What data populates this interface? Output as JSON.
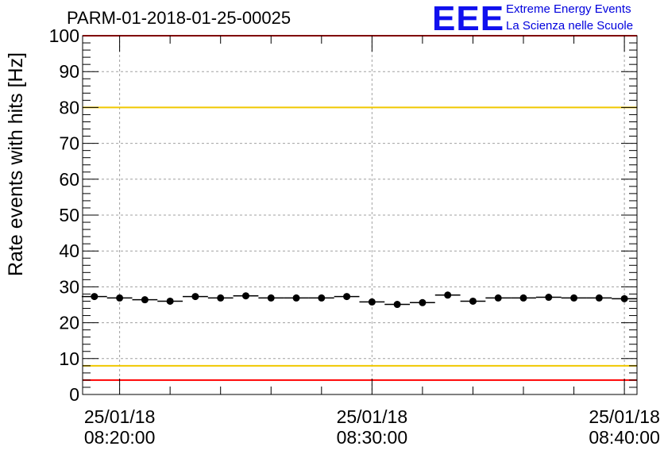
{
  "title": "PARM-01-2018-01-25-00025",
  "logo": {
    "text": "EEE",
    "line1": "Extreme Energy Events",
    "line2": "La Scienza nelle Scuole",
    "color": "#1010ee"
  },
  "chart_data": {
    "type": "scatter",
    "title": "PARM-01-2018-01-25-00025",
    "ylabel": "Rate events with hits [Hz]",
    "xlabel": "",
    "ylim": [
      0,
      100
    ],
    "yticks": [
      0,
      10,
      20,
      30,
      40,
      50,
      60,
      70,
      80,
      90,
      100
    ],
    "xlim": [
      "2018-01-25 08:18:32",
      "2018-01-25 08:40:30"
    ],
    "xtick_labels": [
      {
        "date": "25/01/18",
        "time": "08:20:00",
        "t": "2018-01-25 08:20:00"
      },
      {
        "date": "25/01/18",
        "time": "08:30:00",
        "t": "2018-01-25 08:30:00"
      },
      {
        "date": "25/01/18",
        "time": "08:40:00",
        "t": "2018-01-25 08:40:00"
      }
    ],
    "grid": true,
    "thresholds": [
      {
        "value": 100,
        "color": "#ff0000"
      },
      {
        "value": 80,
        "color": "#f0c800"
      },
      {
        "value": 8,
        "color": "#f0c800"
      },
      {
        "value": 4,
        "color": "#ff0000"
      }
    ],
    "series": [
      {
        "marker_color": "#000000",
        "points": [
          {
            "t": "2018-01-25 08:19:00",
            "y": 27.3
          },
          {
            "t": "2018-01-25 08:20:00",
            "y": 26.9
          },
          {
            "t": "2018-01-25 08:21:00",
            "y": 26.4
          },
          {
            "t": "2018-01-25 08:22:00",
            "y": 26.0
          },
          {
            "t": "2018-01-25 08:23:00",
            "y": 27.3
          },
          {
            "t": "2018-01-25 08:24:00",
            "y": 26.9
          },
          {
            "t": "2018-01-25 08:25:00",
            "y": 27.5
          },
          {
            "t": "2018-01-25 08:26:00",
            "y": 26.9
          },
          {
            "t": "2018-01-25 08:27:00",
            "y": 26.9
          },
          {
            "t": "2018-01-25 08:28:00",
            "y": 26.9
          },
          {
            "t": "2018-01-25 08:29:00",
            "y": 27.3
          },
          {
            "t": "2018-01-25 08:30:00",
            "y": 25.8
          },
          {
            "t": "2018-01-25 08:31:00",
            "y": 25.1
          },
          {
            "t": "2018-01-25 08:32:00",
            "y": 25.6
          },
          {
            "t": "2018-01-25 08:33:00",
            "y": 27.7
          },
          {
            "t": "2018-01-25 08:34:00",
            "y": 26.0
          },
          {
            "t": "2018-01-25 08:35:00",
            "y": 26.9
          },
          {
            "t": "2018-01-25 08:36:00",
            "y": 26.9
          },
          {
            "t": "2018-01-25 08:37:00",
            "y": 27.1
          },
          {
            "t": "2018-01-25 08:38:00",
            "y": 26.9
          },
          {
            "t": "2018-01-25 08:39:00",
            "y": 26.9
          },
          {
            "t": "2018-01-25 08:40:00",
            "y": 26.7
          }
        ]
      }
    ]
  }
}
